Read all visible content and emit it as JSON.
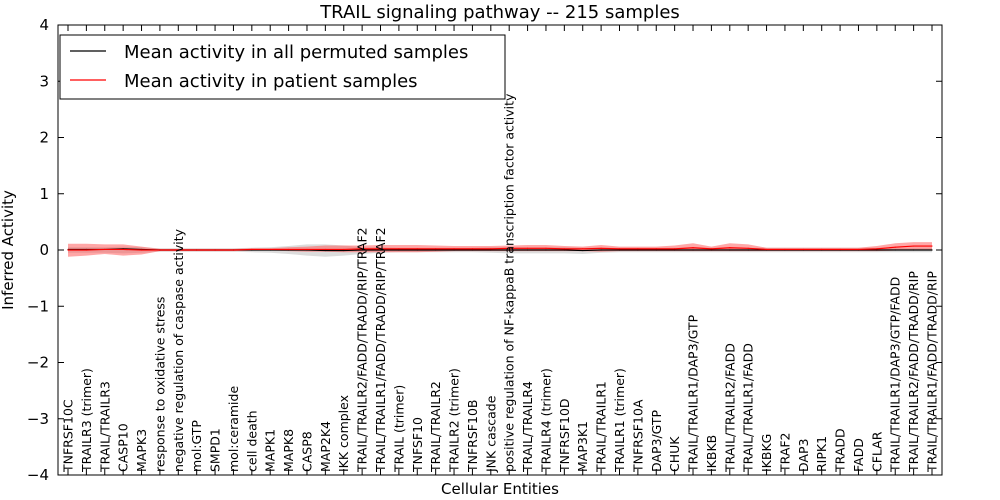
{
  "chart_data": {
    "type": "line",
    "title": "TRAIL signaling pathway -- 215 samples",
    "xlabel": "Cellular Entities",
    "ylabel": "Inferred Activity",
    "ylim": [
      -4,
      4
    ],
    "yticks": [
      -4,
      -3,
      -2,
      -1,
      0,
      1,
      2,
      3,
      4
    ],
    "ytick_labels": [
      "−4",
      "−3",
      "−2",
      "−1",
      "0",
      "1",
      "2",
      "3",
      "4"
    ],
    "grid": false,
    "legend_position": "top-left",
    "categories": [
      "TNFRSF10C",
      "TRAILR3 (trimer)",
      "TRAIL/TRAILR3",
      "CASP10",
      "MAPK3",
      "response to oxidative stress",
      "negative regulation of caspase activity",
      "mol:GTP",
      "SMPD1",
      "mol:ceramide",
      "cell death",
      "MAPK1",
      "MAPK8",
      "CASP8",
      "MAP2K4",
      "IKK complex",
      "TRAIL/TRAILR2/FADD/TRADD/RIP/TRAF2",
      "TRAIL/TRAILR1/FADD/TRADD/RIP/TRAF2",
      "TRAIL (trimer)",
      "TNFSF10",
      "TRAIL/TRAILR2",
      "TRAILR2 (trimer)",
      "TNFRSF10B",
      "JNK cascade",
      "positive regulation of NF-kappaB transcription factor activity",
      "TRAIL/TRAILR4",
      "TRAILR4 (trimer)",
      "TNFRSF10D",
      "MAP3K1",
      "TRAIL/TRAILR1",
      "TRAILR1 (trimer)",
      "TNFRSF10A",
      "DAP3/GTP",
      "CHUK",
      "TRAIL/TRAILR1/DAP3/GTP",
      "IKBKB",
      "TRAIL/TRAILR2/FADD",
      "TRAIL/TRAILR1/FADD",
      "IKBKG",
      "TRAF2",
      "DAP3",
      "RIPK1",
      "TRADD",
      "FADD",
      "CFLAR",
      "TRAIL/TRAILR1/DAP3/GTP/FADD",
      "TRAIL/TRAILR2/FADD/TRADD/RIP",
      "TRAIL/TRAILR1/FADD/TRADD/RIP"
    ],
    "series": [
      {
        "name": "Mean activity in all permuted samples",
        "color": "#000000",
        "values": [
          0.01,
          0.01,
          0.01,
          0.02,
          0.01,
          0.0,
          0.0,
          0.0,
          0.0,
          0.0,
          0.0,
          0.0,
          0.0,
          0.0,
          -0.01,
          -0.01,
          0.0,
          0.0,
          0.0,
          0.0,
          0.0,
          0.0,
          0.0,
          0.0,
          0.0,
          0.0,
          0.0,
          0.0,
          -0.01,
          0.0,
          0.0,
          0.0,
          0.0,
          0.0,
          0.0,
          0.0,
          0.0,
          0.0,
          0.0,
          0.0,
          0.0,
          0.0,
          0.0,
          0.0,
          0.0,
          0.0,
          0.0,
          0.0
        ],
        "band_low": [
          -0.05,
          -0.05,
          -0.05,
          -0.06,
          -0.05,
          -0.03,
          -0.03,
          -0.03,
          -0.03,
          -0.03,
          -0.04,
          -0.05,
          -0.07,
          -0.1,
          -0.12,
          -0.1,
          -0.07,
          -0.05,
          -0.04,
          -0.04,
          -0.04,
          -0.04,
          -0.04,
          -0.05,
          -0.06,
          -0.06,
          -0.06,
          -0.06,
          -0.07,
          -0.05,
          -0.04,
          -0.04,
          -0.04,
          -0.04,
          -0.04,
          -0.04,
          -0.04,
          -0.04,
          -0.04,
          -0.04,
          -0.04,
          -0.04,
          -0.04,
          -0.04,
          -0.04,
          -0.04,
          -0.04,
          -0.04
        ],
        "band_high": [
          0.05,
          0.05,
          0.05,
          0.06,
          0.05,
          0.03,
          0.03,
          0.03,
          0.03,
          0.03,
          0.04,
          0.05,
          0.07,
          0.1,
          0.1,
          0.08,
          0.05,
          0.05,
          0.04,
          0.04,
          0.04,
          0.04,
          0.04,
          0.05,
          0.05,
          0.05,
          0.05,
          0.05,
          0.04,
          0.04,
          0.04,
          0.04,
          0.04,
          0.04,
          0.04,
          0.04,
          0.04,
          0.04,
          0.04,
          0.04,
          0.04,
          0.04,
          0.04,
          0.04,
          0.04,
          0.04,
          0.04,
          0.04
        ]
      },
      {
        "name": "Mean activity in patient samples",
        "color": "#ff0000",
        "values": [
          0.0,
          0.0,
          0.01,
          0.01,
          0.0,
          0.0,
          0.0,
          0.0,
          0.0,
          0.0,
          0.01,
          0.01,
          0.01,
          0.01,
          0.01,
          0.01,
          0.02,
          0.02,
          0.02,
          0.02,
          0.02,
          0.02,
          0.02,
          0.02,
          0.03,
          0.03,
          0.03,
          0.02,
          0.02,
          0.03,
          0.02,
          0.02,
          0.02,
          0.02,
          0.04,
          0.02,
          0.04,
          0.03,
          0.01,
          0.01,
          0.01,
          0.01,
          0.01,
          0.01,
          0.02,
          0.05,
          0.07,
          0.07
        ],
        "band_low": [
          -0.12,
          -0.1,
          -0.07,
          -0.1,
          -0.08,
          -0.02,
          -0.02,
          -0.02,
          -0.02,
          -0.02,
          -0.01,
          -0.01,
          -0.02,
          -0.03,
          -0.03,
          -0.04,
          -0.04,
          -0.04,
          -0.04,
          -0.04,
          -0.03,
          -0.02,
          -0.02,
          -0.02,
          -0.02,
          -0.02,
          -0.02,
          -0.02,
          -0.02,
          -0.03,
          -0.02,
          -0.02,
          -0.02,
          -0.02,
          -0.02,
          -0.02,
          -0.02,
          -0.02,
          -0.02,
          -0.02,
          -0.02,
          -0.02,
          -0.02,
          -0.02,
          -0.02,
          -0.01,
          0.0,
          0.0
        ],
        "band_high": [
          0.11,
          0.11,
          0.1,
          0.1,
          0.06,
          0.02,
          0.02,
          0.02,
          0.02,
          0.02,
          0.03,
          0.03,
          0.05,
          0.06,
          0.08,
          0.08,
          0.08,
          0.09,
          0.09,
          0.09,
          0.08,
          0.07,
          0.07,
          0.07,
          0.08,
          0.09,
          0.09,
          0.07,
          0.06,
          0.09,
          0.06,
          0.06,
          0.06,
          0.08,
          0.12,
          0.06,
          0.12,
          0.1,
          0.04,
          0.04,
          0.04,
          0.04,
          0.04,
          0.04,
          0.07,
          0.12,
          0.14,
          0.14
        ]
      }
    ]
  }
}
